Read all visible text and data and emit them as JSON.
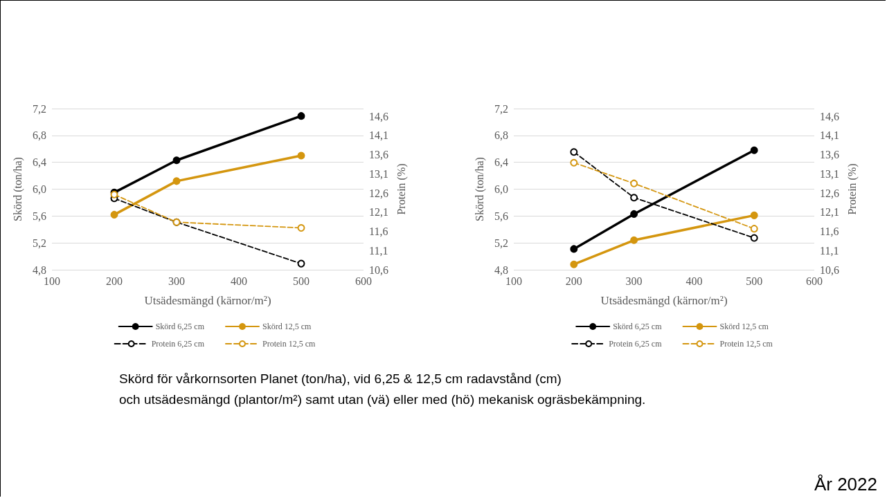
{
  "chart_data": [
    {
      "type": "line",
      "xlabel": "Utsädesmängd (kärnor/m²)",
      "ylabel": "Skörd (ton/ha)",
      "y2label": "Protein (%)",
      "x": [
        200,
        300,
        500
      ],
      "xlim": [
        100,
        600
      ],
      "xticks": [
        100,
        200,
        300,
        400,
        500,
        600
      ],
      "ylim": [
        4.8,
        7.2
      ],
      "yticks": [
        {
          "value": 4.8,
          "label": "4,8"
        },
        {
          "value": 5.2,
          "label": "5,2"
        },
        {
          "value": 5.6,
          "label": "5,6"
        },
        {
          "value": 6.0,
          "label": "6,0"
        },
        {
          "value": 6.4,
          "label": "6,4"
        },
        {
          "value": 6.8,
          "label": "6,8"
        },
        {
          "value": 7.2,
          "label": "7,2"
        }
      ],
      "y2lim": [
        10.6,
        14.8
      ],
      "y2ticks": [
        {
          "value": 10.6,
          "label": "10,6"
        },
        {
          "value": 11.1,
          "label": "11,1"
        },
        {
          "value": 11.6,
          "label": "11,6"
        },
        {
          "value": 12.1,
          "label": "12,1"
        },
        {
          "value": 12.6,
          "label": "12,6"
        },
        {
          "value": 13.1,
          "label": "13,1"
        },
        {
          "value": 13.6,
          "label": "13,6"
        },
        {
          "value": 14.1,
          "label": "14,1"
        },
        {
          "value": 14.6,
          "label": "14,6"
        }
      ],
      "grid": "y",
      "legend": "bottom",
      "marker": "circle",
      "series": [
        {
          "name": "Skörd 6,25 cm",
          "color": "#000000",
          "values": [
            5.95,
            6.43,
            7.09
          ],
          "line_style": "solid"
        },
        {
          "name": "Skörd 12,5 cm",
          "color": "#d4960f",
          "values": [
            5.62,
            6.12,
            6.5
          ],
          "line_style": "solid"
        },
        {
          "name": "Protein 6,25 cm",
          "color": "#000000",
          "values": [
            12.46,
            11.84,
            10.76
          ],
          "axis": "y2",
          "line_style": "dashed"
        },
        {
          "name": "Protein 12,5 cm",
          "color": "#d4960f",
          "values": [
            12.56,
            11.84,
            11.69
          ],
          "axis": "y2",
          "line_style": "dashed"
        }
      ],
      "annotations": [
        "Skörd för vårkornsorten Planet (ton/ha), vid 6,25 & 12,5 cm radavstånd (cm)",
        "och utsädesmängd (plantor/m²) samt utan (vä) eller med (hö) mekanisk ogräsbekämpning.",
        "År 2022"
      ]
    },
    {
      "type": "line",
      "xlabel": "Utsädesmängd (kärnor/m²)",
      "ylabel": "Skörd (ton/ha)",
      "y2label": "Protein (%)",
      "x": [
        200,
        300,
        500
      ],
      "xlim": [
        100,
        600
      ],
      "xticks": [
        100,
        200,
        300,
        400,
        500,
        600
      ],
      "ylim": [
        4.8,
        7.2
      ],
      "yticks": [
        {
          "value": 4.8,
          "label": "4,8"
        },
        {
          "value": 5.2,
          "label": "5,2"
        },
        {
          "value": 5.6,
          "label": "5,6"
        },
        {
          "value": 6.0,
          "label": "6,0"
        },
        {
          "value": 6.4,
          "label": "6,4"
        },
        {
          "value": 6.8,
          "label": "6,8"
        },
        {
          "value": 7.2,
          "label": "7,2"
        }
      ],
      "y2lim": [
        10.6,
        14.8
      ],
      "y2ticks": [
        {
          "value": 10.6,
          "label": "10,6"
        },
        {
          "value": 11.1,
          "label": "11,1"
        },
        {
          "value": 11.6,
          "label": "11,6"
        },
        {
          "value": 12.1,
          "label": "12,1"
        },
        {
          "value": 12.6,
          "label": "12,6"
        },
        {
          "value": 13.1,
          "label": "13,1"
        },
        {
          "value": 13.6,
          "label": "13,6"
        },
        {
          "value": 14.1,
          "label": "14,1"
        },
        {
          "value": 14.6,
          "label": "14,6"
        }
      ],
      "grid": "y",
      "legend": "bottom",
      "marker": "circle",
      "series": [
        {
          "name": "Skörd 6,25 cm",
          "color": "#000000",
          "values": [
            5.11,
            5.63,
            6.58
          ],
          "line_style": "solid"
        },
        {
          "name": "Skörd 12,5 cm",
          "color": "#d4960f",
          "values": [
            4.88,
            5.24,
            5.61
          ],
          "line_style": "solid"
        },
        {
          "name": "Protein 6,25 cm",
          "color": "#000000",
          "values": [
            13.67,
            12.48,
            11.43
          ],
          "axis": "y2",
          "line_style": "dashed"
        },
        {
          "name": "Protein 12,5 cm",
          "color": "#d4960f",
          "values": [
            13.39,
            12.85,
            11.67
          ],
          "axis": "y2",
          "line_style": "dashed"
        }
      ]
    }
  ]
}
